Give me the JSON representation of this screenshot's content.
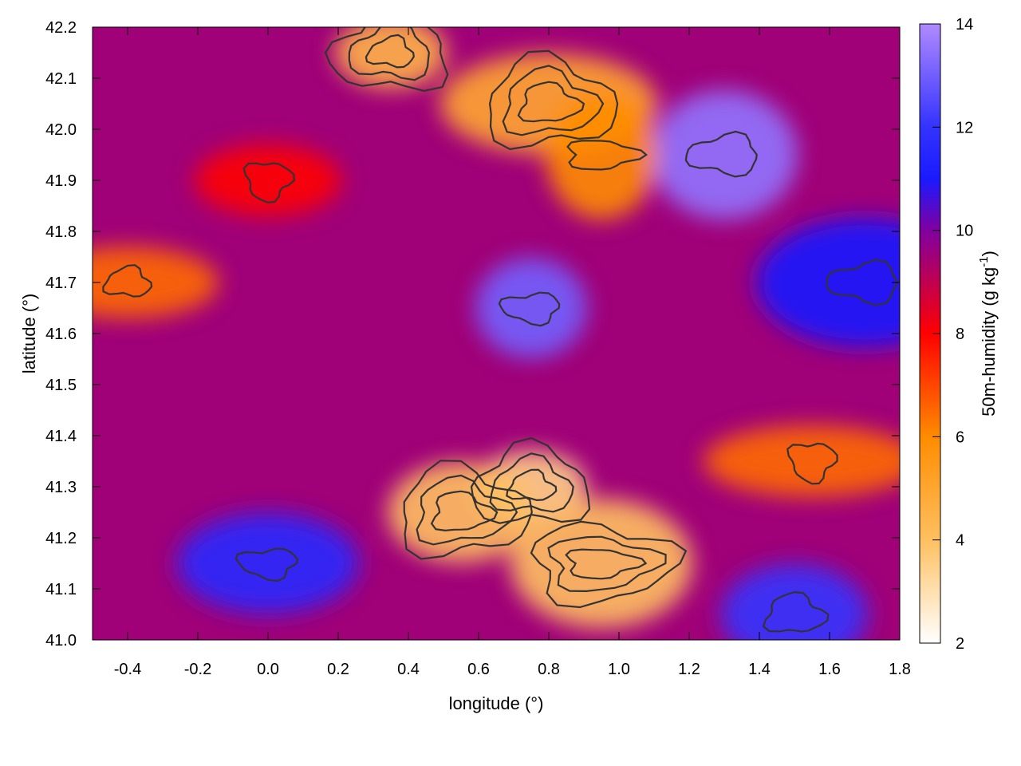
{
  "chart_data": {
    "type": "heatmap",
    "xlabel": "longitude (°)",
    "ylabel": "latitude (°)",
    "colorbar_label": {
      "main": "50m-humidity (g kg",
      "sup": "-1",
      "close": ")"
    },
    "xlim": [
      -0.5,
      1.8
    ],
    "ylim": [
      41.0,
      42.2
    ],
    "x_ticks": [
      "-0.4",
      "-0.2",
      "0.0",
      "0.2",
      "0.4",
      "0.6",
      "0.8",
      "1.0",
      "1.2",
      "1.4",
      "1.6",
      "1.8"
    ],
    "x_tick_values": [
      -0.4,
      -0.2,
      0.0,
      0.2,
      0.4,
      0.6,
      0.8,
      1.0,
      1.2,
      1.4,
      1.6,
      1.8
    ],
    "y_ticks": [
      "41.0",
      "41.1",
      "41.2",
      "41.3",
      "41.4",
      "41.5",
      "41.6",
      "41.7",
      "41.8",
      "41.9",
      "42.0",
      "42.1",
      "42.2"
    ],
    "y_tick_values": [
      41.0,
      41.1,
      41.2,
      41.3,
      41.4,
      41.5,
      41.6,
      41.7,
      41.8,
      41.9,
      42.0,
      42.1,
      42.2
    ],
    "colorbar_range": [
      2,
      14
    ],
    "colorbar_ticks": [
      "2",
      "4",
      "6",
      "8",
      "10",
      "12",
      "14"
    ],
    "colorbar_tick_values": [
      2,
      4,
      6,
      8,
      10,
      12,
      14
    ],
    "colormap": [
      {
        "value": 2,
        "color": "#ffffff"
      },
      {
        "value": 4,
        "color": "#ffc060"
      },
      {
        "value": 6,
        "color": "#ff8c00"
      },
      {
        "value": 8,
        "color": "#ff0000"
      },
      {
        "value": 10,
        "color": "#8000a0"
      },
      {
        "value": 11,
        "color": "#1a1aff"
      },
      {
        "value": 12,
        "color": "#3333ff"
      },
      {
        "value": 14,
        "color": "#b08aff"
      }
    ],
    "features": [
      {
        "lon": 0.75,
        "lat": 41.3,
        "humidity": 3.5
      },
      {
        "lon": 0.55,
        "lat": 41.25,
        "humidity": 4.0
      },
      {
        "lon": 0.95,
        "lat": 41.15,
        "humidity": 4.0
      },
      {
        "lon": 1.55,
        "lat": 41.35,
        "humidity": 6.5
      },
      {
        "lon": 0.75,
        "lat": 41.65,
        "humidity": 13.0
      },
      {
        "lon": 1.3,
        "lat": 41.95,
        "humidity": 13.5
      },
      {
        "lon": -0.4,
        "lat": 41.7,
        "humidity": 6.5
      },
      {
        "lon": 0.8,
        "lat": 42.05,
        "humidity": 5.0
      },
      {
        "lon": 0.95,
        "lat": 41.95,
        "humidity": 6.0
      },
      {
        "lon": 0.0,
        "lat": 41.9,
        "humidity": 8.0
      },
      {
        "lon": 0.0,
        "lat": 41.15,
        "humidity": 11.5
      },
      {
        "lon": 1.7,
        "lat": 41.7,
        "humidity": 11.0
      },
      {
        "lon": 0.35,
        "lat": 42.15,
        "humidity": 4.5
      },
      {
        "lon": 1.5,
        "lat": 41.05,
        "humidity": 12.0
      }
    ],
    "contours": "on",
    "grid": "off"
  }
}
